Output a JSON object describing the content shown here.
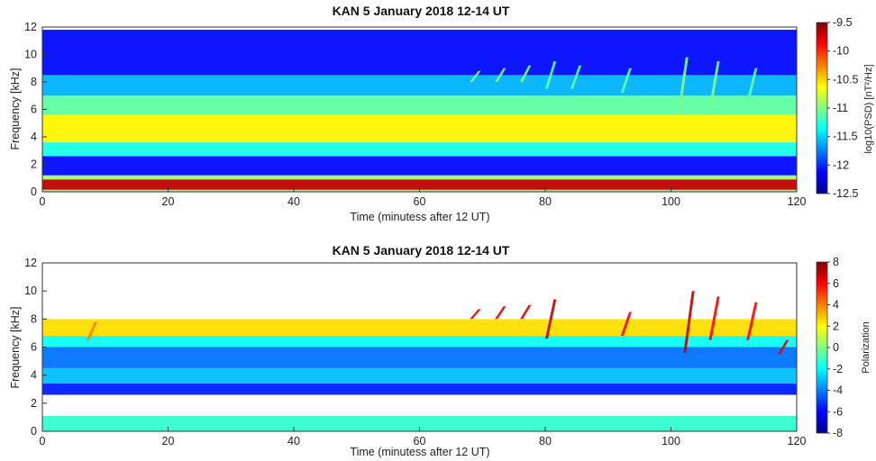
{
  "chart_data": [
    {
      "type": "heatmap",
      "title": "KAN  5 January 2018  12-14 UT",
      "xlabel": "Time (minutess after 12 UT)",
      "ylabel": "Frequency [kHz]",
      "xlim": [
        0,
        120
      ],
      "ylim": [
        0,
        12
      ],
      "xticks": [
        "0",
        "20",
        "40",
        "60",
        "80",
        "100",
        "120"
      ],
      "yticks": [
        "0",
        "2",
        "4",
        "6",
        "8",
        "10",
        "12"
      ],
      "colorbar": {
        "label": "log10(PSD) [nT²/Hz]",
        "range": [
          -12.5,
          -9.5
        ],
        "ticks": [
          "-9.5",
          "-10",
          "-10.5",
          "-11",
          "-11.5",
          "-12",
          "-12.5"
        ],
        "colormap": "jet"
      },
      "bands": [
        {
          "f0": 0.0,
          "f1": 0.15,
          "value": -11.0
        },
        {
          "f0": 0.15,
          "f1": 0.9,
          "value": -9.7
        },
        {
          "f0": 0.9,
          "f1": 1.2,
          "value": -10.9
        },
        {
          "f0": 1.2,
          "f1": 2.6,
          "value": -12.1
        },
        {
          "f0": 2.6,
          "f1": 3.6,
          "value": -11.3
        },
        {
          "f0": 3.6,
          "f1": 5.6,
          "value": -10.6
        },
        {
          "f0": 5.6,
          "f1": 7.0,
          "value": -11.1
        },
        {
          "f0": 7.0,
          "f1": 8.5,
          "value": -11.6
        },
        {
          "f0": 8.5,
          "f1": 11.8,
          "value": -12.1
        }
      ],
      "emissions": [
        {
          "t": 68,
          "f0": 8.0,
          "f1": 8.8,
          "value": -11.0
        },
        {
          "t": 72,
          "f0": 8.0,
          "f1": 9.0,
          "value": -11.0
        },
        {
          "t": 76,
          "f0": 8.0,
          "f1": 9.2,
          "value": -11.0
        },
        {
          "t": 80,
          "f0": 7.5,
          "f1": 9.5,
          "value": -11.1
        },
        {
          "t": 84,
          "f0": 7.5,
          "f1": 9.2,
          "value": -11.1
        },
        {
          "t": 92,
          "f0": 7.2,
          "f1": 9.0,
          "value": -11.1
        },
        {
          "t": 101,
          "f0": 5.6,
          "f1": 9.8,
          "value": -11.0
        },
        {
          "t": 106,
          "f0": 6.0,
          "f1": 9.5,
          "value": -11.0
        },
        {
          "t": 112,
          "f0": 6.5,
          "f1": 9.0,
          "value": -11.1
        }
      ]
    },
    {
      "type": "heatmap",
      "title": "KAN  5 January 2018  12-14 UT",
      "xlabel": "Time (minutess after 12 UT)",
      "ylabel": "Frequency [kHz]",
      "xlim": [
        0,
        120
      ],
      "ylim": [
        0,
        12
      ],
      "xticks": [
        "0",
        "20",
        "40",
        "60",
        "80",
        "100",
        "120"
      ],
      "yticks": [
        "0",
        "2",
        "4",
        "6",
        "8",
        "10",
        "12"
      ],
      "colorbar": {
        "label": "Polarization",
        "range": [
          -8,
          8
        ],
        "ticks": [
          "8",
          "6",
          "4",
          "2",
          "0",
          "-2",
          "-4",
          "-6",
          "-8"
        ],
        "colormap": "jet"
      },
      "bands": [
        {
          "f0": 0.0,
          "f1": 1.1,
          "value": -1.2
        },
        {
          "f0": 1.1,
          "f1": 2.6,
          "value": 0.0
        },
        {
          "f0": 2.6,
          "f1": 3.4,
          "value": -5.5
        },
        {
          "f0": 3.4,
          "f1": 4.5,
          "value": -3.0
        },
        {
          "f0": 4.5,
          "f1": 6.0,
          "value": -4.2
        },
        {
          "f0": 6.0,
          "f1": 6.8,
          "value": -1.8
        },
        {
          "f0": 6.8,
          "f1": 8.0,
          "value": 2.5
        },
        {
          "f0": 8.0,
          "f1": 12.0,
          "value": 0.0
        }
      ],
      "emissions": [
        {
          "t": 7,
          "f0": 6.5,
          "f1": 7.8,
          "value": 4.0
        },
        {
          "t": 68,
          "f0": 8.0,
          "f1": 8.7,
          "value": 6.5
        },
        {
          "t": 72,
          "f0": 8.0,
          "f1": 8.9,
          "value": 6.5
        },
        {
          "t": 76,
          "f0": 8.0,
          "f1": 9.0,
          "value": 6.5
        },
        {
          "t": 80,
          "f0": 6.6,
          "f1": 9.4,
          "value": 7.0
        },
        {
          "t": 92,
          "f0": 6.8,
          "f1": 8.5,
          "value": 6.0
        },
        {
          "t": 102,
          "f0": 5.6,
          "f1": 10.0,
          "value": 7.0
        },
        {
          "t": 106,
          "f0": 6.5,
          "f1": 9.6,
          "value": 6.0
        },
        {
          "t": 112,
          "f0": 6.5,
          "f1": 9.2,
          "value": 6.0
        },
        {
          "t": 117,
          "f0": 5.5,
          "f1": 6.5,
          "value": 6.5
        }
      ]
    }
  ]
}
